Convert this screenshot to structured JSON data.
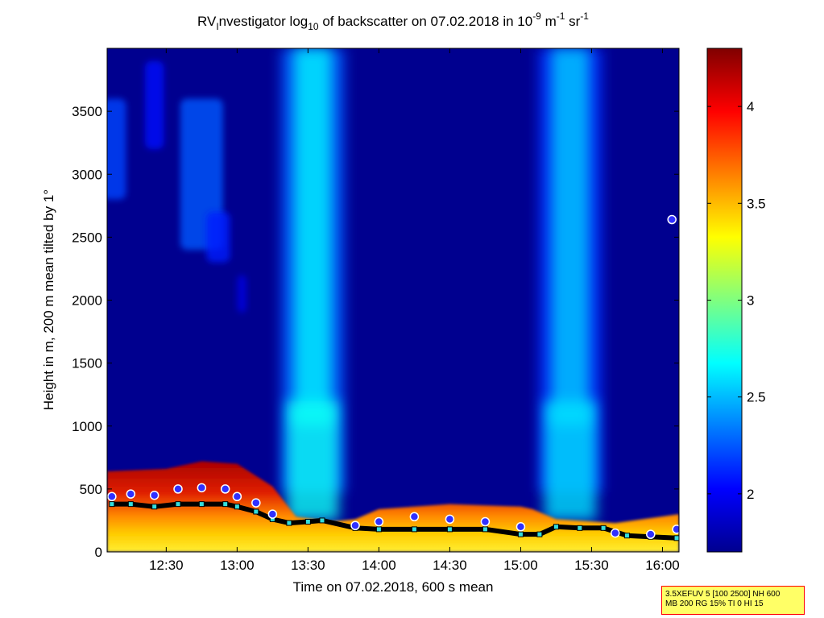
{
  "chart_data": {
    "type": "heatmap",
    "title_parts": {
      "prefix": "RV",
      "sub_I": "I",
      "mid": "nvestigator log",
      "sub_10": "10",
      "rest": " of backscatter on 07.02.2018 in 10",
      "sup_m9": "-9",
      "unit_m": " m",
      "sup_m1": "-1",
      "unit_sr": " sr",
      "sup_m1b": "-1"
    },
    "xlabel": "Time on 07.02.2018, 600 s mean",
    "ylabel": "Height in m, 200 m mean tilted by 1°",
    "xlim": [
      "12:05",
      "16:07"
    ],
    "ylim": [
      0,
      4000
    ],
    "x_ticks": [
      "12:30",
      "13:00",
      "13:30",
      "14:00",
      "14:30",
      "15:00",
      "15:30",
      "16:00"
    ],
    "y_ticks": [
      "0",
      "500",
      "1000",
      "1500",
      "2000",
      "2500",
      "3000",
      "3500"
    ],
    "y_tick_values": [
      0,
      500,
      1000,
      1500,
      2000,
      2500,
      3000,
      3500
    ],
    "colorbar": {
      "range": [
        1.7,
        4.3
      ],
      "ticks": [
        "2",
        "2.5",
        "3",
        "3.5",
        "4"
      ],
      "tick_values": [
        2,
        2.5,
        3,
        3.5,
        4
      ],
      "colormap": "jet"
    },
    "background_value": 1.75,
    "boundary_layer_top_m": [
      {
        "t": "12:05",
        "v": 640
      },
      {
        "t": "12:30",
        "v": 660
      },
      {
        "t": "12:45",
        "v": 720
      },
      {
        "t": "13:00",
        "v": 700
      },
      {
        "t": "13:15",
        "v": 520
      },
      {
        "t": "13:25",
        "v": 280
      },
      {
        "t": "13:40",
        "v": 240
      },
      {
        "t": "13:50",
        "v": 260
      },
      {
        "t": "14:00",
        "v": 340
      },
      {
        "t": "14:30",
        "v": 380
      },
      {
        "t": "15:00",
        "v": 360
      },
      {
        "t": "15:05",
        "v": 340
      },
      {
        "t": "15:15",
        "v": 260
      },
      {
        "t": "15:40",
        "v": 230
      },
      {
        "t": "16:07",
        "v": 300
      }
    ],
    "series": [
      {
        "points": [
          {
            "t": "12:07",
            "v": 380
          },
          {
            "t": "12:15",
            "v": 380
          },
          {
            "t": "12:25",
            "v": 360
          },
          {
            "t": "12:35",
            "v": 380
          },
          {
            "t": "12:45",
            "v": 380
          },
          {
            "t": "12:55",
            "v": 380
          },
          {
            "t": "13:00",
            "v": 360
          },
          {
            "t": "13:08",
            "v": 320
          },
          {
            "t": "13:15",
            "v": 260
          },
          {
            "t": "13:22",
            "v": 230
          },
          {
            "t": "13:30",
            "v": 240
          },
          {
            "t": "13:36",
            "v": 250
          },
          {
            "t": "13:50",
            "v": 190
          },
          {
            "t": "14:00",
            "v": 180
          },
          {
            "t": "14:15",
            "v": 180
          },
          {
            "t": "14:30",
            "v": 180
          },
          {
            "t": "14:45",
            "v": 180
          },
          {
            "t": "15:00",
            "v": 140
          },
          {
            "t": "15:08",
            "v": 140
          },
          {
            "t": "15:15",
            "v": 200
          },
          {
            "t": "15:25",
            "v": 190
          },
          {
            "t": "15:35",
            "v": 190
          },
          {
            "t": "15:45",
            "v": 130
          },
          {
            "t": "15:55",
            "v": 120
          },
          {
            "t": "16:06",
            "v": 110
          }
        ]
      },
      {
        "points": [
          {
            "t": "12:07",
            "v": 440
          },
          {
            "t": "12:15",
            "v": 460
          },
          {
            "t": "12:25",
            "v": 450
          },
          {
            "t": "12:35",
            "v": 500
          },
          {
            "t": "12:45",
            "v": 510
          },
          {
            "t": "12:55",
            "v": 500
          },
          {
            "t": "13:00",
            "v": 440
          },
          {
            "t": "13:08",
            "v": 390
          },
          {
            "t": "13:15",
            "v": 300
          },
          {
            "t": "13:50",
            "v": 210
          },
          {
            "t": "14:00",
            "v": 240
          },
          {
            "t": "14:15",
            "v": 280
          },
          {
            "t": "14:30",
            "v": 260
          },
          {
            "t": "14:45",
            "v": 240
          },
          {
            "t": "15:00",
            "v": 200
          },
          {
            "t": "15:40",
            "v": 150
          },
          {
            "t": "15:55",
            "v": 140
          },
          {
            "t": "16:06",
            "v": 180
          },
          {
            "t": "16:04",
            "v": 2640
          }
        ]
      }
    ],
    "plumes": [
      {
        "center": "13:32",
        "half_width_min": 10,
        "peak_value": 2.6,
        "top": 4000
      },
      {
        "center": "15:21",
        "half_width_min": 10,
        "peak_value": 2.5,
        "top": 4000
      }
    ],
    "aerosol_patches": [
      {
        "center": "12:08",
        "half_width_min": 5,
        "bottom": 2800,
        "top": 3600,
        "value": 2.2
      },
      {
        "center": "12:45",
        "half_width_min": 9,
        "bottom": 2400,
        "top": 3600,
        "value": 2.25
      },
      {
        "center": "12:25",
        "half_width_min": 4,
        "bottom": 3200,
        "top": 3900,
        "value": 2.05
      },
      {
        "center": "12:52",
        "half_width_min": 5,
        "bottom": 2300,
        "top": 2700,
        "value": 2.1
      },
      {
        "center": "13:02",
        "half_width_min": 2,
        "bottom": 1900,
        "top": 2200,
        "value": 1.95
      }
    ]
  },
  "info_box": {
    "line1": "3.5XEFUV 5 [100 2500] NH 600",
    "line2": "MB 200 RG 15% TI 0 HI 15"
  }
}
